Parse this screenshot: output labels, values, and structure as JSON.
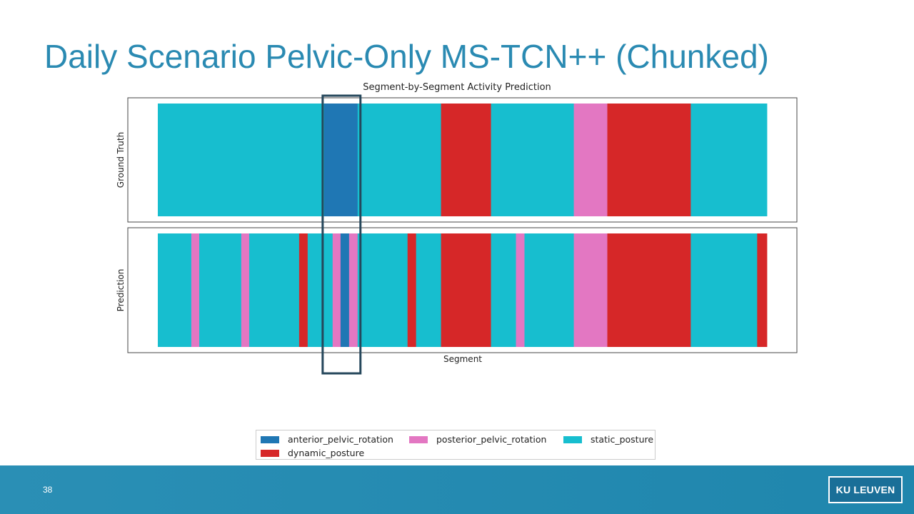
{
  "slide": {
    "title": "Daily Scenario Pelvic-Only MS-TCN++ (Chunked)",
    "page_number": "38",
    "logo_text": "KU LEUVEN"
  },
  "colors": {
    "anterior_pelvic_rotation": "#1f77b4",
    "posterior_pelvic_rotation": "#e377c2",
    "static_posture": "#17becf",
    "dynamic_posture": "#d62728",
    "highlight_box": "#25475b",
    "footer": "#2a8fb5",
    "title": "#2a8ab2"
  },
  "chart_data": {
    "type": "bar",
    "subtype": "segment timeline",
    "title": "Segment-by-Segment Activity Prediction",
    "xlabel": "Segment",
    "x_range": [
      0,
      100
    ],
    "grid": false,
    "legend_position": "bottom",
    "classes": [
      "anterior_pelvic_rotation",
      "posterior_pelvic_rotation",
      "static_posture",
      "dynamic_posture"
    ],
    "series": [
      {
        "name": "Ground Truth",
        "segments": [
          {
            "label": "static_posture",
            "start": 0,
            "end": 27.3
          },
          {
            "label": "anterior_pelvic_rotation",
            "start": 27.3,
            "end": 32.8
          },
          {
            "label": "static_posture",
            "start": 32.8,
            "end": 46.5
          },
          {
            "label": "dynamic_posture",
            "start": 46.5,
            "end": 54.7
          },
          {
            "label": "static_posture",
            "start": 54.7,
            "end": 68.3
          },
          {
            "label": "posterior_pelvic_rotation",
            "start": 68.3,
            "end": 73.8
          },
          {
            "label": "dynamic_posture",
            "start": 73.8,
            "end": 87.5
          },
          {
            "label": "static_posture",
            "start": 87.5,
            "end": 100
          }
        ]
      },
      {
        "name": "Prediction",
        "segments": [
          {
            "label": "static_posture",
            "start": 0,
            "end": 5.5
          },
          {
            "label": "posterior_pelvic_rotation",
            "start": 5.5,
            "end": 6.8
          },
          {
            "label": "static_posture",
            "start": 6.8,
            "end": 13.7
          },
          {
            "label": "posterior_pelvic_rotation",
            "start": 13.7,
            "end": 15.0
          },
          {
            "label": "static_posture",
            "start": 15.0,
            "end": 23.2
          },
          {
            "label": "dynamic_posture",
            "start": 23.2,
            "end": 24.6
          },
          {
            "label": "static_posture",
            "start": 24.6,
            "end": 28.7
          },
          {
            "label": "posterior_pelvic_rotation",
            "start": 28.7,
            "end": 30.0
          },
          {
            "label": "anterior_pelvic_rotation",
            "start": 30.0,
            "end": 31.4
          },
          {
            "label": "posterior_pelvic_rotation",
            "start": 31.4,
            "end": 32.8
          },
          {
            "label": "static_posture",
            "start": 32.8,
            "end": 41.0
          },
          {
            "label": "dynamic_posture",
            "start": 41.0,
            "end": 42.4
          },
          {
            "label": "static_posture",
            "start": 42.4,
            "end": 46.5
          },
          {
            "label": "dynamic_posture",
            "start": 46.5,
            "end": 54.7
          },
          {
            "label": "static_posture",
            "start": 54.7,
            "end": 58.8
          },
          {
            "label": "posterior_pelvic_rotation",
            "start": 58.8,
            "end": 60.2
          },
          {
            "label": "static_posture",
            "start": 60.2,
            "end": 68.3
          },
          {
            "label": "posterior_pelvic_rotation",
            "start": 68.3,
            "end": 73.8
          },
          {
            "label": "dynamic_posture",
            "start": 73.8,
            "end": 87.5
          },
          {
            "label": "static_posture",
            "start": 87.5,
            "end": 98.4
          },
          {
            "label": "dynamic_posture",
            "start": 98.4,
            "end": 100
          }
        ]
      }
    ],
    "highlight": {
      "start": 27.3,
      "end": 32.8
    },
    "legend": [
      {
        "label": "anterior_pelvic_rotation",
        "color": "#1f77b4"
      },
      {
        "label": "posterior_pelvic_rotation",
        "color": "#e377c2"
      },
      {
        "label": "static_posture",
        "color": "#17becf"
      },
      {
        "label": "dynamic_posture",
        "color": "#d62728"
      }
    ]
  }
}
